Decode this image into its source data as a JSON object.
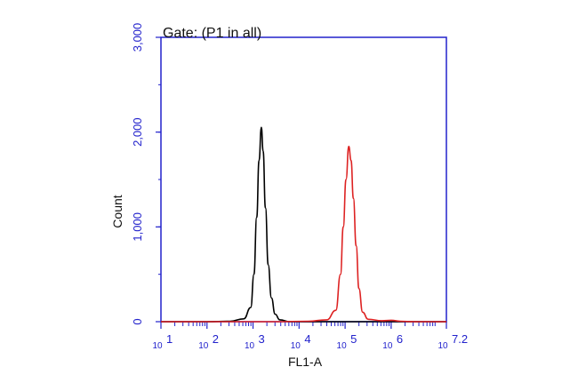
{
  "chart_data": {
    "type": "line",
    "title": "Gate: (P1 in all)",
    "xlabel": "FL1-A",
    "ylabel": "Count",
    "x_scale": "log10",
    "xlim": [
      1,
      7.2
    ],
    "ylim": [
      0,
      3000
    ],
    "y_ticks": [
      "0",
      "1,000",
      "2,000",
      "3,000"
    ],
    "x_ticks": [
      {
        "base": "10",
        "exp": "1"
      },
      {
        "base": "10",
        "exp": "2"
      },
      {
        "base": "10",
        "exp": "3"
      },
      {
        "base": "10",
        "exp": "4"
      },
      {
        "base": "10",
        "exp": "5"
      },
      {
        "base": "10",
        "exp": "6"
      },
      {
        "base": "10",
        "exp": "7.2"
      }
    ],
    "grid": false,
    "series": [
      {
        "color": "#000000",
        "points": [
          [
            1.0,
            0
          ],
          [
            2.0,
            0
          ],
          [
            2.5,
            5
          ],
          [
            2.8,
            30
          ],
          [
            2.95,
            150
          ],
          [
            3.02,
            500
          ],
          [
            3.08,
            1100
          ],
          [
            3.13,
            1700
          ],
          [
            3.18,
            2050
          ],
          [
            3.22,
            1800
          ],
          [
            3.27,
            1200
          ],
          [
            3.33,
            600
          ],
          [
            3.4,
            250
          ],
          [
            3.48,
            80
          ],
          [
            3.58,
            20
          ],
          [
            3.8,
            0
          ],
          [
            7.2,
            0
          ]
        ]
      },
      {
        "color": "#dd2222",
        "points": [
          [
            1.0,
            0
          ],
          [
            3.5,
            0
          ],
          [
            4.2,
            5
          ],
          [
            4.6,
            20
          ],
          [
            4.8,
            120
          ],
          [
            4.9,
            500
          ],
          [
            4.96,
            1000
          ],
          [
            5.02,
            1500
          ],
          [
            5.08,
            1850
          ],
          [
            5.13,
            1700
          ],
          [
            5.18,
            1300
          ],
          [
            5.24,
            800
          ],
          [
            5.3,
            350
          ],
          [
            5.38,
            100
          ],
          [
            5.5,
            25
          ],
          [
            5.8,
            10
          ],
          [
            6.0,
            15
          ],
          [
            6.2,
            5
          ],
          [
            6.5,
            0
          ],
          [
            7.2,
            0
          ]
        ]
      }
    ]
  }
}
